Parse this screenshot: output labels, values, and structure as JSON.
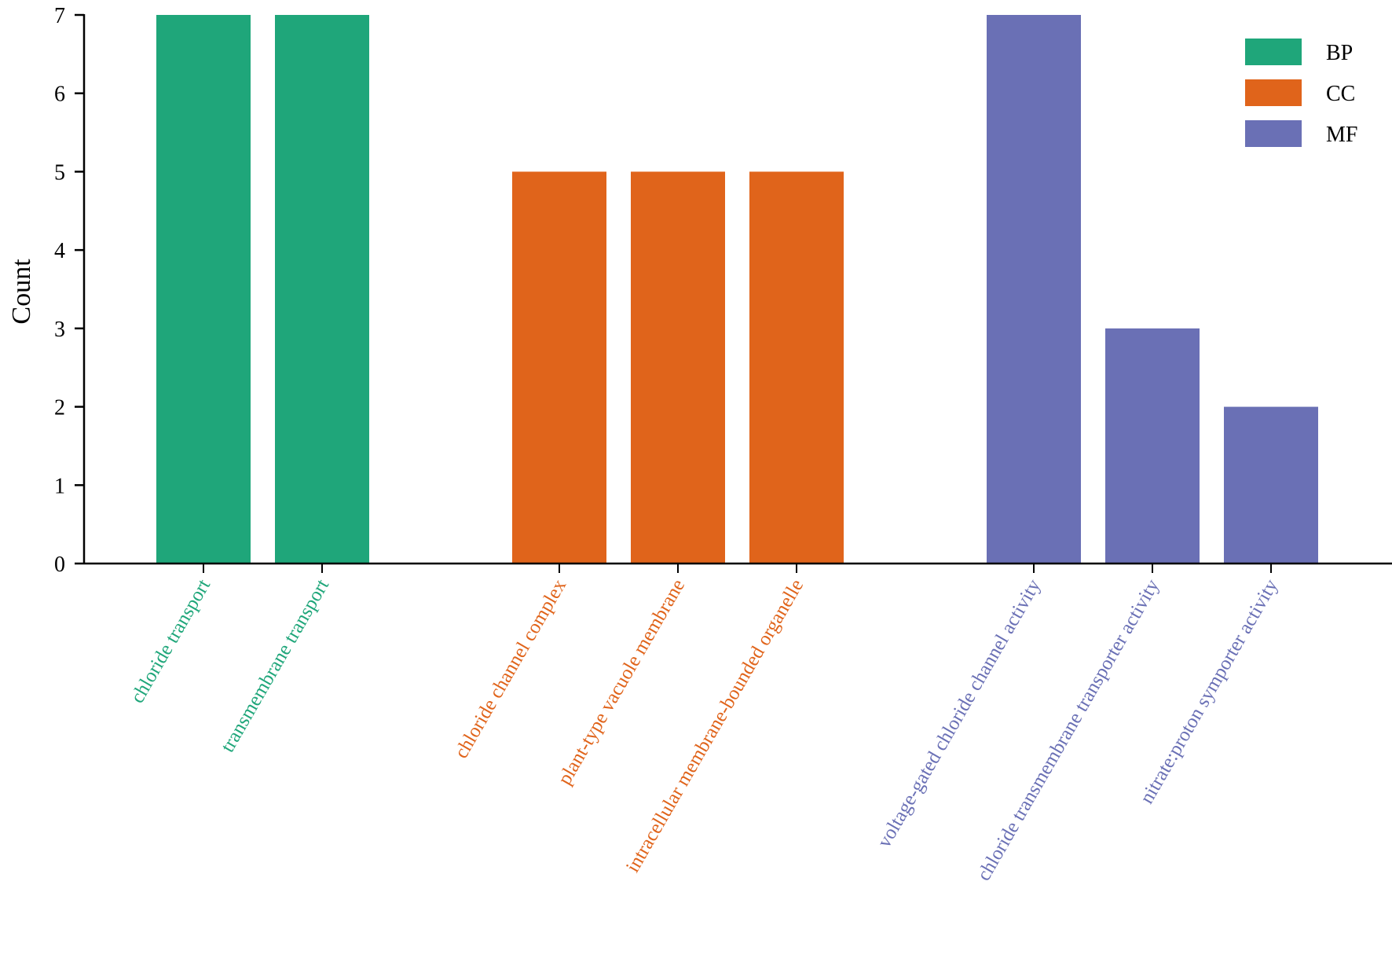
{
  "chart_data": {
    "type": "bar",
    "ylabel": "Count",
    "xlabel": "",
    "ylim": [
      0,
      7
    ],
    "yticks": [
      0,
      1,
      2,
      3,
      4,
      5,
      6,
      7
    ],
    "grid": false,
    "legend_position": "top-right",
    "groups": [
      {
        "name": "BP",
        "color": "#1fa67a",
        "bars": [
          {
            "label": "chloride transport",
            "value": 7
          },
          {
            "label": "transmembrane transport",
            "value": 7
          }
        ]
      },
      {
        "name": "CC",
        "color": "#e0641b",
        "bars": [
          {
            "label": "chloride channel complex",
            "value": 5
          },
          {
            "label": "plant-type vacuole membrane",
            "value": 5
          },
          {
            "label": "intracellular membrane-bounded organelle",
            "value": 5
          }
        ]
      },
      {
        "name": "MF",
        "color": "#6a70b5",
        "bars": [
          {
            "label": "voltage-gated chloride channel activity",
            "value": 7
          },
          {
            "label": "chloride transmembrane transporter activity",
            "value": 3
          },
          {
            "label": "nitrate:proton symporter activity",
            "value": 2
          }
        ]
      }
    ]
  }
}
